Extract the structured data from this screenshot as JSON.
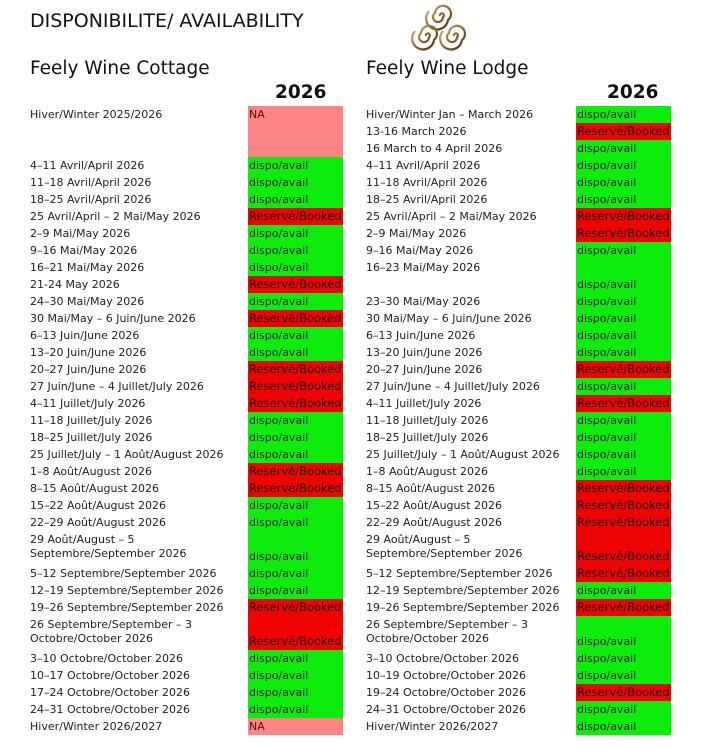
{
  "title": "DISPONIBILITE/ AVAILABILITY",
  "colors": {
    "available": "#0ced0c",
    "booked": "#ee0202",
    "na": "#fb8585"
  },
  "cottage": {
    "name": "Feely Wine Cottage",
    "year": "2026",
    "rows": [
      {
        "label": "Hiver/Winter 2025/2026",
        "status": "NA",
        "kind": "na",
        "span": 3
      },
      {
        "label": "4–11 Avril/April 2026",
        "status": "dispo/avail",
        "kind": "avail"
      },
      {
        "label": "11–18 Avril/April 2026",
        "status": "dispo/avail",
        "kind": "avail"
      },
      {
        "label": "18–25 Avril/April 2026",
        "status": "dispo/avail",
        "kind": "avail"
      },
      {
        "label": "25 Avril/April – 2 Mai/May 2026",
        "status": "Reservé/Booked",
        "kind": "booked"
      },
      {
        "label": "2–9 Mai/May 2026",
        "status": "dispo/avail",
        "kind": "avail"
      },
      {
        "label": "9–16 Mai/May 2026",
        "status": "dispo/avail",
        "kind": "avail"
      },
      {
        "label": "16–21 Mai/May 2026",
        "status": "dispo/avail",
        "kind": "avail"
      },
      {
        "label": "21-24 May 2026",
        "status": "Reservé/Booked",
        "kind": "booked"
      },
      {
        "label": "24–30 Mai/May 2026",
        "status": "dispo/avail",
        "kind": "avail"
      },
      {
        "label": "30 Mai/May – 6 Juin/June 2026",
        "status": "Reservé/Booked",
        "kind": "booked"
      },
      {
        "label": "6–13 Juin/June 2026",
        "status": "dispo/avail",
        "kind": "avail"
      },
      {
        "label": "13–20 Juin/June 2026",
        "status": "dispo/avail",
        "kind": "avail"
      },
      {
        "label": "20–27 Juin/June 2026",
        "status": "Reservé/Booked",
        "kind": "booked"
      },
      {
        "label": "27 Juin/June – 4 Juillet/July 2026",
        "status": "Reservé/Booked",
        "kind": "booked"
      },
      {
        "label": "4–11 Juillet/July 2026",
        "status": "Reservé/Booked",
        "kind": "booked"
      },
      {
        "label": "11–18 Juillet/July 2026",
        "status": "dispo/avail",
        "kind": "avail"
      },
      {
        "label": "18–25 Juillet/July 2026",
        "status": "dispo/avail",
        "kind": "avail"
      },
      {
        "label": "25 Juillet/July – 1 Août/August 2026",
        "status": "dispo/avail",
        "kind": "avail"
      },
      {
        "label": "1–8 Août/August 2026",
        "status": "Reservé/Booked",
        "kind": "booked"
      },
      {
        "label": "8–15 Août/August 2026",
        "status": "Reservé/Booked",
        "kind": "booked"
      },
      {
        "label": "15–22 Août/August 2026",
        "status": "dispo/avail",
        "kind": "avail"
      },
      {
        "label": "22–29 Août/August 2026",
        "status": "dispo/avail",
        "kind": "avail"
      },
      {
        "label": "29 Août/August – 5 Septembre/September 2026",
        "status": "dispo/avail",
        "kind": "avail",
        "span": 2
      },
      {
        "label": "5–12 Septembre/September 2026",
        "status": "dispo/avail",
        "kind": "avail"
      },
      {
        "label": "12–19 Septembre/September 2026",
        "status": "dispo/avail",
        "kind": "avail"
      },
      {
        "label": "19–26 Septembre/September 2026",
        "status": "Reservé/Booked",
        "kind": "booked"
      },
      {
        "label": "26 Septembre/September – 3 Octobre/October 2026",
        "status": "Reservé/Booked",
        "kind": "booked",
        "span": 2
      },
      {
        "label": "3–10 Octobre/October 2026",
        "status": "dispo/avail",
        "kind": "avail"
      },
      {
        "label": "10–17 Octobre/October 2026",
        "status": "dispo/avail",
        "kind": "avail"
      },
      {
        "label": "17–24 Octobre/October 2026",
        "status": "dispo/avail",
        "kind": "avail"
      },
      {
        "label": "24–31 Octobre/October 2026",
        "status": "dispo/avail",
        "kind": "avail"
      },
      {
        "label": "Hiver/Winter 2026/2027",
        "status": "NA",
        "kind": "na"
      }
    ]
  },
  "lodge": {
    "name": "Feely Wine Lodge",
    "year": "2026",
    "rows": [
      {
        "label": "Hiver/Winter Jan – March 2026",
        "status": "dispo/avail",
        "kind": "avail"
      },
      {
        "label": "13-16 March 2026",
        "status": "Reservé/Booked",
        "kind": "booked"
      },
      {
        "label": "16 March to 4 April 2026",
        "status": "dispo/avail",
        "kind": "avail"
      },
      {
        "label": "4–11 Avril/April 2026",
        "status": "dispo/avail",
        "kind": "avail"
      },
      {
        "label": "11–18 Avril/April 2026",
        "status": "dispo/avail",
        "kind": "avail"
      },
      {
        "label": "18–25 Avril/April 2026",
        "status": "dispo/avail",
        "kind": "avail"
      },
      {
        "label": "25 Avril/April – 2 Mai/May 2026",
        "status": "Reservé/Booked",
        "kind": "booked"
      },
      {
        "label": "2–9 Mai/May 2026",
        "status": "Reservé/Booked",
        "kind": "booked"
      },
      {
        "label": "9–16 Mai/May 2026",
        "status": "dispo/avail",
        "kind": "avail"
      },
      {
        "label": "16–23 Mai/May 2026",
        "status": "dispo/avail",
        "kind": "avail",
        "span": 2
      },
      {
        "label": "23–30 Mai/May 2026",
        "status": "dispo/avail",
        "kind": "avail"
      },
      {
        "label": "30 Mai/May – 6 Juin/June 2026",
        "status": "dispo/avail",
        "kind": "avail"
      },
      {
        "label": "6–13 Juin/June 2026",
        "status": "dispo/avail",
        "kind": "avail"
      },
      {
        "label": "13–20 Juin/June 2026",
        "status": "dispo/avail",
        "kind": "avail"
      },
      {
        "label": "20–27 Juin/June 2026",
        "status": "Reservé/Booked",
        "kind": "booked"
      },
      {
        "label": "27 Juin/June – 4 Juillet/July 2026",
        "status": "dispo/avail",
        "kind": "avail"
      },
      {
        "label": "4–11 Juillet/July 2026",
        "status": "Reservé/Booked",
        "kind": "booked"
      },
      {
        "label": "11–18 Juillet/July 2026",
        "status": "dispo/avail",
        "kind": "avail"
      },
      {
        "label": "18–25 Juillet/July 2026",
        "status": "dispo/avail",
        "kind": "avail"
      },
      {
        "label": "25 Juillet/July – 1 Août/August 2026",
        "status": "dispo/avail",
        "kind": "avail"
      },
      {
        "label": "1–8 Août/August 2026",
        "status": "dispo/avail",
        "kind": "avail"
      },
      {
        "label": "8–15 Août/August 2026",
        "status": "Reservé/Booked",
        "kind": "booked"
      },
      {
        "label": "15–22 Août/August 2026",
        "status": "Reservé/Booked",
        "kind": "booked"
      },
      {
        "label": "22–29 Août/August 2026",
        "status": "Reservé/Booked",
        "kind": "booked"
      },
      {
        "label": "29 Août/August – 5 Septembre/September 2026",
        "status": "Reservé/Booked",
        "kind": "booked",
        "span": 2
      },
      {
        "label": "5–12 Septembre/September 2026",
        "status": "Reservé/Booked",
        "kind": "booked"
      },
      {
        "label": "12–19 Septembre/September 2026",
        "status": "dispo/avail",
        "kind": "avail"
      },
      {
        "label": "19–26 Septembre/September 2026",
        "status": "Reservé/Booked",
        "kind": "booked"
      },
      {
        "label": "26 Septembre/September – 3 Octobre/October 2026",
        "status": "dispo/avail",
        "kind": "avail",
        "span": 2
      },
      {
        "label": "3–10 Octobre/October 2026",
        "status": "dispo/avail",
        "kind": "avail"
      },
      {
        "label": "10–19 Octobre/October 2026",
        "status": "dispo/avail",
        "kind": "avail"
      },
      {
        "label": "19–24 Octobre/October 2026",
        "status": "Reservé/Booked",
        "kind": "booked"
      },
      {
        "label": "24–31 Octobre/October 2026",
        "status": "dispo/avail",
        "kind": "avail"
      },
      {
        "label": "Hiver/Winter 2026/2027",
        "status": "dispo/avail",
        "kind": "avail"
      }
    ]
  }
}
